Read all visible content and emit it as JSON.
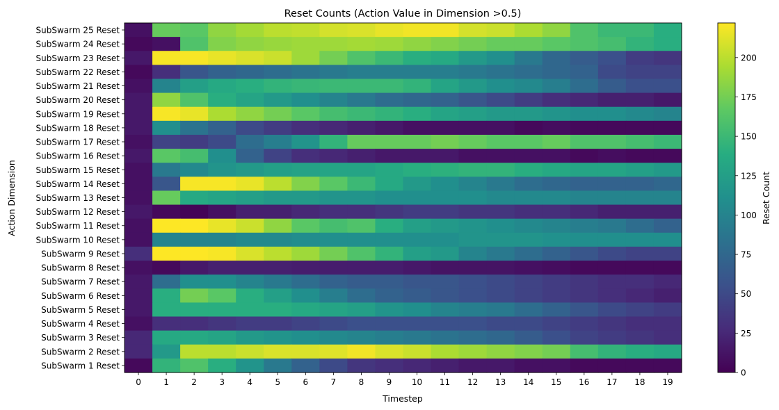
{
  "chart_data": {
    "type": "heatmap",
    "title": "Reset Counts (Action Value in Dimension >0.5)",
    "xlabel": "Timestep",
    "ylabel": "Action Dimension",
    "colorbar_label": "Reset Count",
    "colormap": "viridis",
    "vmin": 0,
    "vmax": 222,
    "colorbar_ticks": [
      0,
      25,
      50,
      75,
      100,
      125,
      150,
      175,
      200
    ],
    "x": [
      0,
      1,
      2,
      3,
      4,
      5,
      6,
      7,
      8,
      9,
      10,
      11,
      12,
      13,
      14,
      15,
      16,
      17,
      18,
      19
    ],
    "rows": [
      {
        "label": "SubSwarm 25 Reset",
        "values": [
          10,
          170,
          165,
          185,
          192,
          200,
          202,
          208,
          210,
          215,
          218,
          218,
          208,
          205,
          195,
          185,
          160,
          150,
          150,
          140
        ]
      },
      {
        "label": "SubSwarm 24 Reset",
        "values": [
          5,
          10,
          160,
          180,
          185,
          188,
          190,
          190,
          192,
          190,
          185,
          180,
          175,
          170,
          170,
          165,
          160,
          155,
          145,
          140
        ]
      },
      {
        "label": "SubSwarm 23 Reset",
        "values": [
          15,
          220,
          220,
          215,
          210,
          205,
          190,
          175,
          160,
          150,
          140,
          135,
          120,
          110,
          90,
          75,
          65,
          55,
          40,
          35
        ]
      },
      {
        "label": "SubSwarm 22 Reset",
        "values": [
          5,
          30,
          60,
          70,
          75,
          80,
          85,
          90,
          95,
          95,
          95,
          95,
          90,
          85,
          80,
          75,
          70,
          50,
          45,
          45
        ]
      },
      {
        "label": "SubSwarm 21 Reset",
        "values": [
          10,
          100,
          125,
          135,
          140,
          145,
          148,
          150,
          150,
          150,
          145,
          130,
          120,
          110,
          105,
          95,
          80,
          65,
          55,
          55
        ]
      },
      {
        "label": "SubSwarm 20 Reset",
        "values": [
          15,
          185,
          160,
          140,
          130,
          120,
          110,
          100,
          90,
          80,
          75,
          70,
          60,
          50,
          40,
          30,
          25,
          20,
          20,
          15
        ]
      },
      {
        "label": "SubSwarm 19 Reset",
        "values": [
          15,
          220,
          215,
          195,
          185,
          175,
          165,
          155,
          150,
          145,
          140,
          130,
          125,
          120,
          120,
          115,
          110,
          110,
          105,
          100
        ]
      },
      {
        "label": "SubSwarm 18 Reset",
        "values": [
          15,
          110,
          85,
          70,
          50,
          40,
          30,
          25,
          20,
          15,
          10,
          10,
          10,
          10,
          5,
          8,
          5,
          5,
          5,
          5
        ]
      },
      {
        "label": "SubSwarm 17 Reset",
        "values": [
          10,
          45,
          40,
          50,
          80,
          95,
          115,
          145,
          170,
          170,
          170,
          175,
          170,
          165,
          165,
          170,
          160,
          160,
          155,
          150
        ]
      },
      {
        "label": "SubSwarm 16 Reset",
        "values": [
          15,
          165,
          155,
          110,
          70,
          45,
          30,
          25,
          20,
          15,
          15,
          15,
          10,
          10,
          10,
          10,
          5,
          8,
          5,
          5
        ]
      },
      {
        "label": "SubSwarm 15 Reset",
        "values": [
          10,
          90,
          105,
          115,
          120,
          125,
          128,
          130,
          130,
          135,
          140,
          142,
          145,
          145,
          140,
          135,
          130,
          130,
          125,
          120
        ]
      },
      {
        "label": "SubSwarm 14 Reset",
        "values": [
          10,
          60,
          220,
          220,
          215,
          200,
          180,
          165,
          150,
          135,
          120,
          110,
          100,
          90,
          80,
          75,
          70,
          70,
          70,
          75
        ]
      },
      {
        "label": "SubSwarm 13 Reset",
        "values": [
          10,
          170,
          135,
          130,
          125,
          120,
          120,
          115,
          115,
          110,
          110,
          110,
          110,
          105,
          105,
          105,
          100,
          100,
          100,
          100
        ]
      },
      {
        "label": "SubSwarm 12 Reset",
        "values": [
          15,
          5,
          2,
          10,
          20,
          20,
          25,
          30,
          30,
          35,
          40,
          40,
          35,
          35,
          30,
          30,
          25,
          20,
          20,
          20
        ]
      },
      {
        "label": "SubSwarm 11 Reset",
        "values": [
          10,
          222,
          222,
          215,
          205,
          185,
          165,
          155,
          160,
          140,
          125,
          120,
          115,
          110,
          105,
          100,
          95,
          90,
          80,
          70
        ]
      },
      {
        "label": "SubSwarm 10 Reset",
        "values": [
          10,
          100,
          100,
          100,
          105,
          105,
          108,
          110,
          110,
          110,
          110,
          110,
          115,
          115,
          115,
          112,
          110,
          110,
          110,
          110
        ]
      },
      {
        "label": "SubSwarm 9 Reset",
        "values": [
          30,
          222,
          222,
          220,
          210,
          200,
          190,
          175,
          160,
          145,
          125,
          120,
          100,
          90,
          80,
          70,
          60,
          50,
          45,
          45
        ]
      },
      {
        "label": "SubSwarm 8 Reset",
        "values": [
          10,
          5,
          15,
          20,
          20,
          20,
          18,
          18,
          18,
          18,
          15,
          12,
          12,
          12,
          10,
          8,
          5,
          5,
          5,
          5
        ]
      },
      {
        "label": "SubSwarm 7 Reset",
        "values": [
          15,
          80,
          110,
          110,
          100,
          90,
          80,
          70,
          65,
          65,
          60,
          60,
          55,
          50,
          45,
          40,
          35,
          30,
          30,
          25
        ]
      },
      {
        "label": "SubSwarm 6 Reset",
        "values": [
          15,
          140,
          175,
          165,
          140,
          125,
          110,
          95,
          80,
          70,
          65,
          60,
          55,
          50,
          45,
          40,
          35,
          30,
          25,
          20
        ]
      },
      {
        "label": "SubSwarm 5 Reset",
        "values": [
          15,
          140,
          140,
          140,
          140,
          140,
          135,
          130,
          125,
          115,
          110,
          100,
          95,
          90,
          80,
          70,
          60,
          50,
          45,
          40
        ]
      },
      {
        "label": "SubSwarm 4 Reset",
        "values": [
          10,
          30,
          30,
          35,
          40,
          40,
          45,
          50,
          55,
          55,
          55,
          55,
          55,
          50,
          50,
          45,
          40,
          35,
          30,
          30
        ]
      },
      {
        "label": "SubSwarm 3 Reset",
        "values": [
          25,
          135,
          135,
          130,
          120,
          115,
          110,
          105,
          100,
          95,
          90,
          85,
          80,
          75,
          65,
          55,
          45,
          40,
          35,
          30
        ]
      },
      {
        "label": "SubSwarm 2 Reset",
        "values": [
          25,
          120,
          200,
          200,
          205,
          210,
          210,
          212,
          218,
          210,
          205,
          195,
          190,
          185,
          180,
          175,
          155,
          145,
          140,
          135
        ]
      },
      {
        "label": "SubSwarm 1 Reset",
        "values": [
          5,
          145,
          160,
          140,
          115,
          90,
          70,
          50,
          35,
          30,
          25,
          20,
          15,
          15,
          10,
          10,
          5,
          5,
          5,
          5
        ]
      }
    ]
  }
}
